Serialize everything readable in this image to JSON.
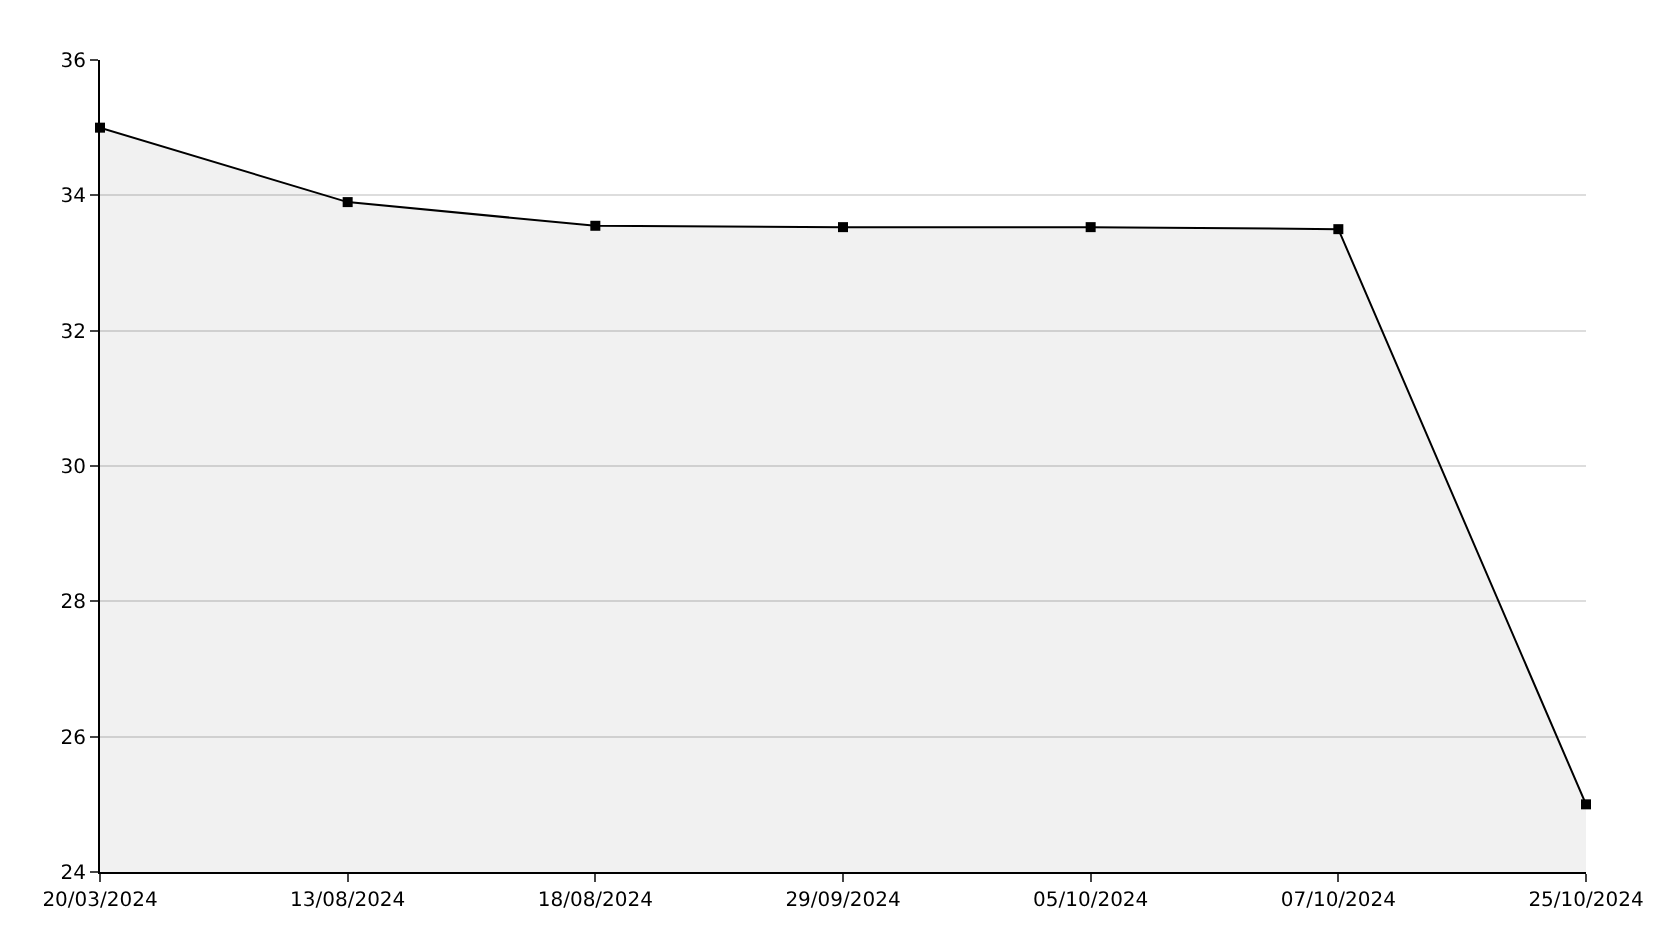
{
  "chart_data": {
    "type": "area",
    "categories": [
      "20/03/2024",
      "13/08/2024",
      "18/08/2024",
      "29/09/2024",
      "05/10/2024",
      "07/10/2024",
      "25/10/2024"
    ],
    "series": [
      {
        "color": "#000000",
        "values": [
          35,
          33.9,
          33.55,
          33.53,
          33.53,
          33.5,
          25
        ]
      }
    ],
    "ylim": [
      24,
      36
    ],
    "yticks": [
      24,
      26,
      28,
      30,
      32,
      34,
      36
    ],
    "grid": "y",
    "marker": "square",
    "line_style": "solid",
    "legend": false
  }
}
